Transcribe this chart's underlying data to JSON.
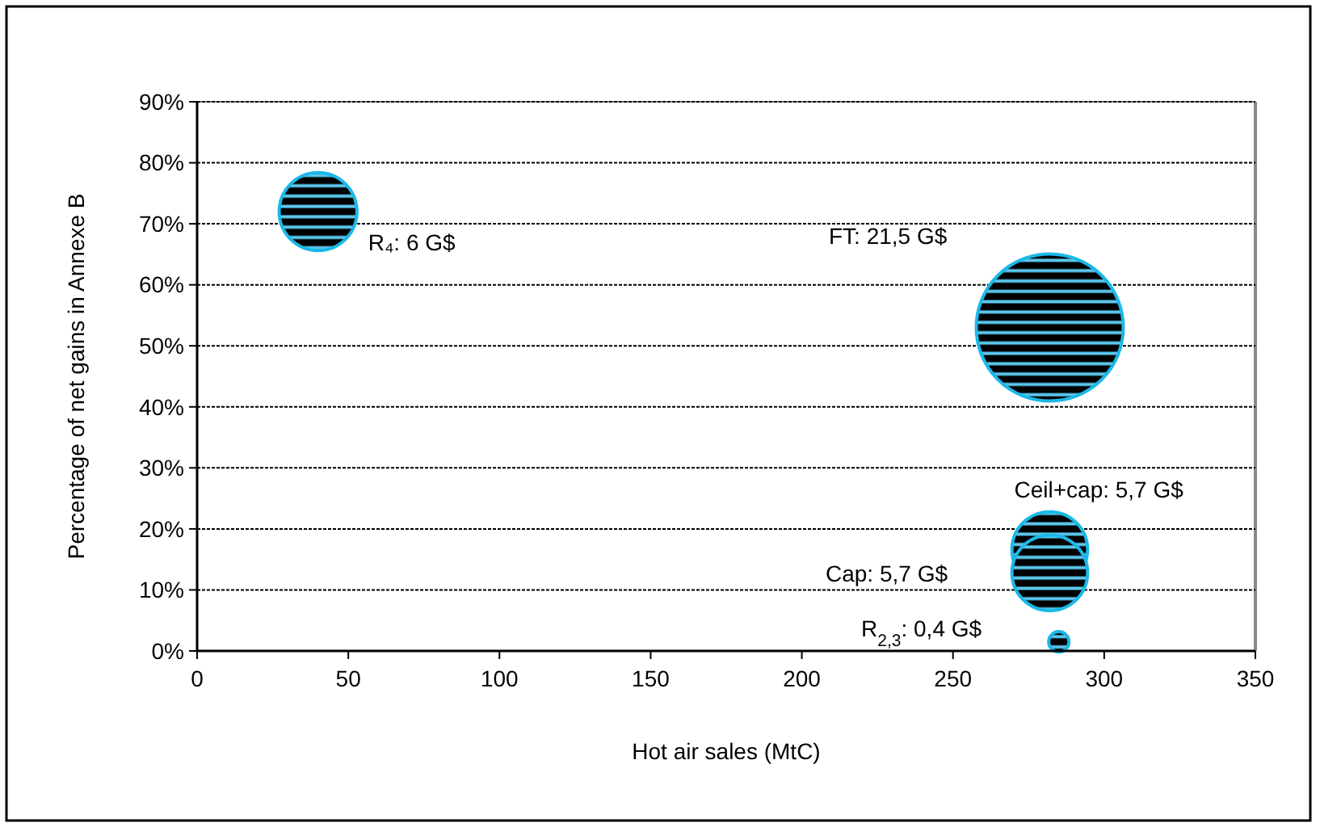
{
  "chart_data": {
    "type": "bubble",
    "xlabel": "Hot air sales (MtC)",
    "ylabel": "Percentage of net gains in Annexe B",
    "xlim": [
      0,
      350
    ],
    "xticks": [
      0,
      50,
      100,
      150,
      200,
      250,
      300,
      350
    ],
    "ylim": [
      0,
      90
    ],
    "yticks": [
      {
        "value": 0,
        "label": "0%"
      },
      {
        "value": 10,
        "label": "10%"
      },
      {
        "value": 20,
        "label": "20%"
      },
      {
        "value": 30,
        "label": "30%"
      },
      {
        "value": 40,
        "label": "40%"
      },
      {
        "value": 50,
        "label": "50%"
      },
      {
        "value": 60,
        "label": "60%"
      },
      {
        "value": 70,
        "label": "70%"
      },
      {
        "value": 80,
        "label": "80%"
      },
      {
        "value": 90,
        "label": "90%"
      }
    ],
    "grid": "y",
    "series": [
      {
        "color": "#1ab8e8",
        "marker": "circle",
        "x": [
          40,
          282,
          282,
          282,
          285
        ],
        "values": [
          72,
          53,
          16.6,
          12.8,
          1.5
        ],
        "sizes": [
          0.28,
          1,
          0.265,
          0.265,
          0.019
        ]
      }
    ],
    "annotations": [
      {
        "text": "R₄: 6 G$",
        "x": 40,
        "y": 72
      },
      "FT: 21,5 G$",
      {
        "text": "Ceil+cap: 5,7 G$",
        "x": 282,
        "y": 16.6
      },
      "Cap: 5,7 G$",
      "R$_{2,3}$: 0,4 G$"
    ]
  }
}
